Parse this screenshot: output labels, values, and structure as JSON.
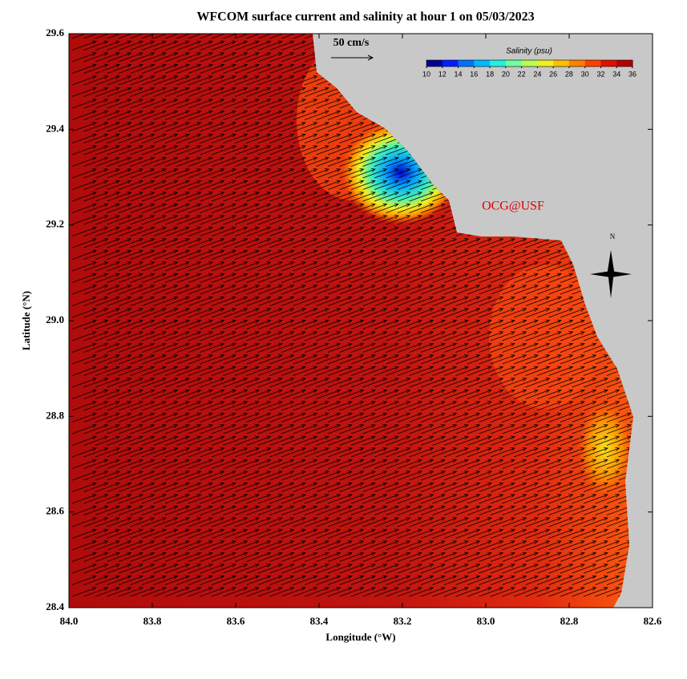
{
  "title": "WFCOM surface current and salinity at hour 1 on 05/03/2023",
  "xaxis": {
    "label": "Longitude (°W)",
    "lim": [
      84,
      82.6
    ],
    "ticks": [
      {
        "value": 84,
        "label": "84.0"
      },
      83.8,
      83.6,
      83.4,
      83.2,
      {
        "value": 83,
        "label": "83.0"
      },
      82.8,
      82.6
    ]
  },
  "yaxis": {
    "label": "Latitude (°N)",
    "lim": [
      28.4,
      29.6
    ],
    "ticks": [
      28.4,
      28.6,
      28.8,
      {
        "value": 29,
        "label": "29.0"
      },
      29.2,
      29.4,
      29.6
    ]
  },
  "colorbar": {
    "title": "Salinity (psu)",
    "lim": [
      10,
      36
    ],
    "ticks": [
      10,
      12,
      14,
      16,
      18,
      20,
      22,
      24,
      26,
      28,
      30,
      32,
      34,
      36
    ],
    "colors": [
      "#00008f",
      "#0020ff",
      "#0070ff",
      "#00b8ff",
      "#20f0e0",
      "#70ffa0",
      "#b8ff50",
      "#f0f020",
      "#ffc000",
      "#ff8000",
      "#ff4000",
      "#e01000",
      "#b00000"
    ]
  },
  "scale_arrow": {
    "label": "50 cm/s"
  },
  "credit": "OCG@USF",
  "compass": "N"
}
